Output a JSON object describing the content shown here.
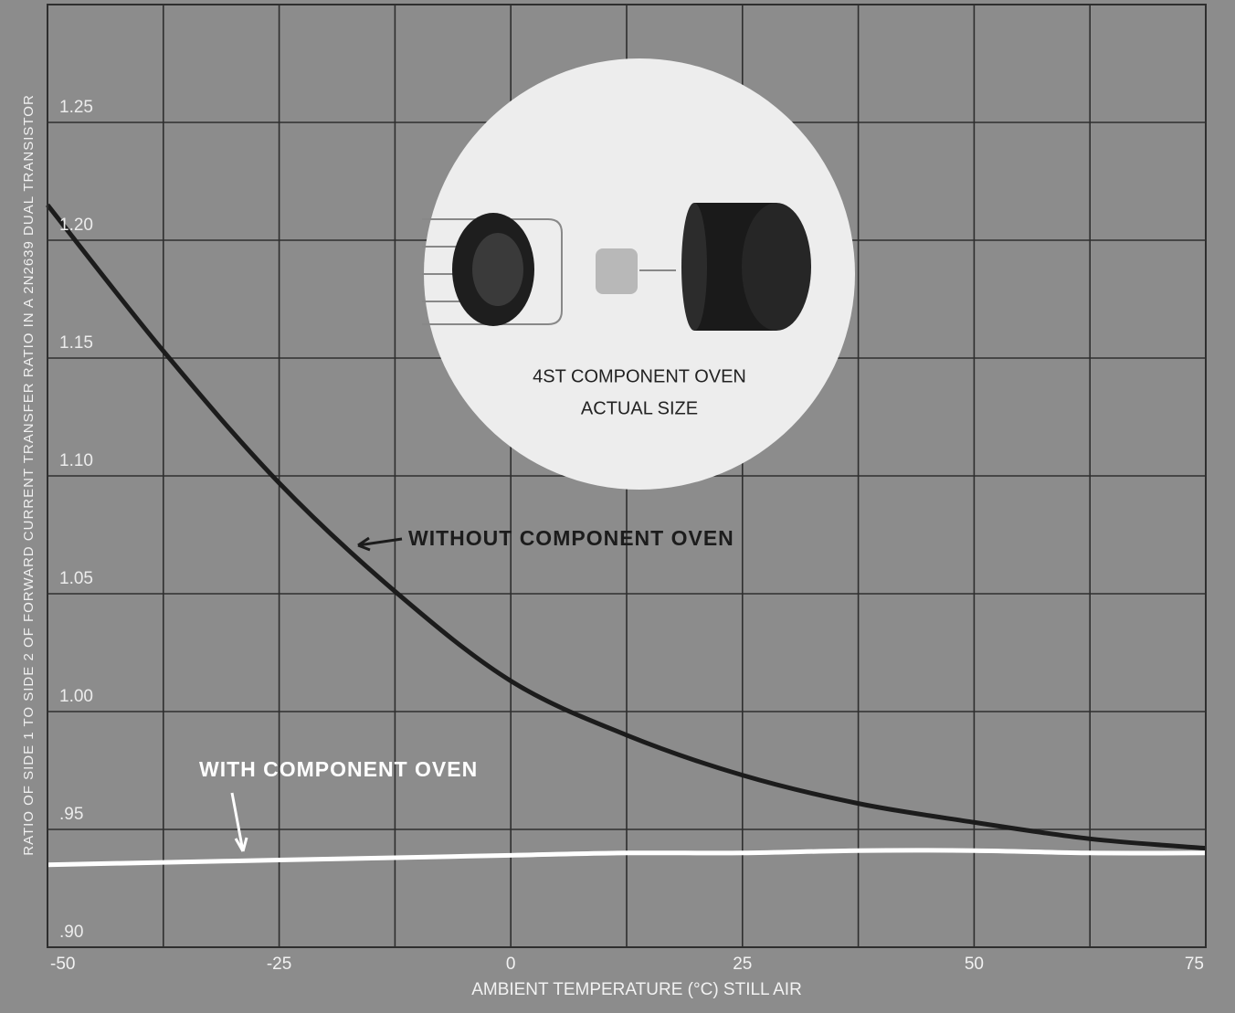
{
  "chart_data": {
    "type": "line",
    "x_label": "AMBIENT TEMPERATURE (°C) STILL AIR",
    "y_label": "RATIO OF SIDE 1 TO SIDE 2 OF FORWARD CURRENT TRANSFER RATIO IN A 2N2639 DUAL TRANSISTOR",
    "x": [
      -50,
      -37.5,
      -25,
      -12.5,
      0,
      12.5,
      25,
      37.5,
      50,
      62.5,
      75
    ],
    "series": [
      {
        "name": "WITHOUT COMPONENT OVEN",
        "color": "#1c1c1c",
        "values": [
          1.215,
          1.153,
          1.097,
          1.051,
          1.013,
          0.99,
          0.973,
          0.961,
          0.953,
          0.946,
          0.942
        ]
      },
      {
        "name": "WITH COMPONENT OVEN",
        "color": "#ffffff",
        "values": [
          0.935,
          0.936,
          0.937,
          0.938,
          0.939,
          0.94,
          0.94,
          0.941,
          0.941,
          0.94,
          0.94
        ]
      }
    ],
    "xlim": [
      -50,
      75
    ],
    "xticks": [
      -50,
      -25,
      0,
      25,
      50,
      75
    ],
    "x_minor_grid": [
      -37.5,
      -12.5,
      12.5,
      37.5,
      62.5
    ],
    "ylim": [
      0.9,
      1.3
    ],
    "yticks": [
      {
        "value": 0.9,
        "label": ".90"
      },
      {
        "value": 0.95,
        "label": ".95"
      },
      {
        "value": 1.0,
        "label": "1.00"
      },
      1.05,
      {
        "value": 1.1,
        "label": "1.10"
      },
      1.15,
      {
        "value": 1.2,
        "label": "1.20"
      },
      1.25
    ],
    "grid": true,
    "inset": {
      "caption": [
        "4ST COMPONENT OVEN",
        "ACTUAL SIZE"
      ]
    }
  }
}
